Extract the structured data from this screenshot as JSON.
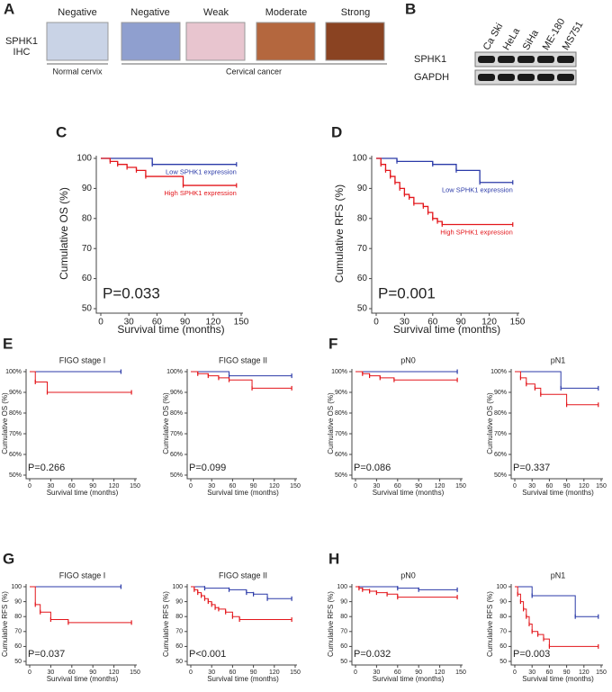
{
  "panel_a": {
    "label": "A",
    "row_label": [
      "SPHK1",
      "IHC"
    ],
    "columns": [
      "Negative",
      "Negative",
      "Weak",
      "Moderate",
      "Strong"
    ],
    "groups": [
      "Normal cervix",
      "Cervical cancer"
    ]
  },
  "panel_b": {
    "label": "B",
    "cell_lines": [
      "Ca Ski",
      "HeLa",
      "SiHa",
      "ME-180",
      "MS751"
    ],
    "proteins": [
      "SPHK1",
      "GAPDH"
    ]
  },
  "chart_data": [
    {
      "type": "line",
      "step": true,
      "panel": "C",
      "x_label": "Survival time (months)",
      "y_label": "Cumulative OS (%)",
      "annotation": "P=0.033",
      "xlim": [
        0,
        150
      ],
      "xticks": [
        0,
        30,
        60,
        90,
        120,
        150
      ],
      "ylim": [
        50,
        100
      ],
      "yticks": [
        50,
        60,
        70,
        80,
        90,
        100
      ],
      "series": [
        {
          "name": "Low SPHK1 expression",
          "color": "#2b3aa8",
          "x": [
            0,
            55,
            145
          ],
          "values": [
            100,
            98,
            98
          ]
        },
        {
          "name": "High SPHK1 expression",
          "color": "#e3161b",
          "x": [
            0,
            10,
            18,
            28,
            38,
            48,
            88,
            145
          ],
          "values": [
            100,
            99,
            98,
            97,
            96,
            94,
            91,
            91
          ]
        }
      ]
    },
    {
      "type": "line",
      "step": true,
      "panel": "D",
      "x_label": "Survival time (months)",
      "y_label": "Cumulative RFS (%)",
      "annotation": "P=0.001",
      "xlim": [
        0,
        150
      ],
      "xticks": [
        0,
        30,
        60,
        90,
        120,
        150
      ],
      "ylim": [
        50,
        100
      ],
      "yticks": [
        50,
        60,
        70,
        80,
        90,
        100
      ],
      "series": [
        {
          "name": "Low SPHK1 expression",
          "color": "#2b3aa8",
          "x": [
            0,
            22,
            60,
            85,
            110,
            145
          ],
          "values": [
            100,
            99,
            98,
            96,
            92,
            92
          ]
        },
        {
          "name": "High SPHK1 expression",
          "color": "#e3161b",
          "x": [
            0,
            5,
            10,
            15,
            20,
            25,
            30,
            35,
            40,
            50,
            55,
            60,
            65,
            70,
            145
          ],
          "values": [
            100,
            98,
            96,
            94,
            92,
            90,
            88,
            87,
            85,
            84,
            82,
            80,
            79,
            78,
            78
          ]
        }
      ]
    },
    {
      "type": "line",
      "step": true,
      "panel": "E",
      "title": "FIGO stage I",
      "x_label": "Survival time (months)",
      "y_label": "Cumulative OS (%)",
      "annotation": "P=0.266",
      "xlim": [
        0,
        150
      ],
      "xticks": [
        0,
        30,
        60,
        90,
        120,
        150
      ],
      "ylim": [
        50,
        100
      ],
      "yticks": [
        {
          "value": 50,
          "label": "50%"
        },
        {
          "value": 60,
          "label": "60%"
        },
        {
          "value": 70,
          "label": "70%"
        },
        {
          "value": 80,
          "label": "80%"
        },
        {
          "value": 90,
          "label": "90%"
        },
        {
          "value": 100,
          "label": "100%"
        }
      ],
      "series": [
        {
          "color": "#2b3aa8",
          "x": [
            0,
            130
          ],
          "values": [
            100,
            100
          ]
        },
        {
          "color": "#e3161b",
          "x": [
            0,
            8,
            25,
            145
          ],
          "values": [
            100,
            95,
            90,
            90
          ]
        }
      ]
    },
    {
      "type": "line",
      "step": true,
      "title": "FIGO stage II",
      "x_label": "Survival time (months)",
      "y_label": "Cumulative OS (%)",
      "annotation": "P=0.099",
      "xlim": [
        0,
        150
      ],
      "xticks": [
        0,
        30,
        60,
        90,
        120,
        150
      ],
      "ylim": [
        50,
        100
      ],
      "yticks": [
        {
          "value": 50,
          "label": "50%"
        },
        {
          "value": 60,
          "label": "60%"
        },
        {
          "value": 70,
          "label": "70%"
        },
        {
          "value": 80,
          "label": "80%"
        },
        {
          "value": 90,
          "label": "90%"
        },
        {
          "value": 100,
          "label": "100%"
        }
      ],
      "series": [
        {
          "color": "#2b3aa8",
          "x": [
            0,
            55,
            145
          ],
          "values": [
            100,
            98,
            98
          ]
        },
        {
          "color": "#e3161b",
          "x": [
            0,
            10,
            25,
            40,
            55,
            88,
            145
          ],
          "values": [
            100,
            99,
            98,
            97,
            96,
            92,
            92
          ]
        }
      ]
    },
    {
      "type": "line",
      "step": true,
      "panel": "F",
      "title": "pN0",
      "x_label": "Survival time (months)",
      "y_label": "Cumulative OS (%)",
      "annotation": "P=0.086",
      "xlim": [
        0,
        150
      ],
      "xticks": [
        0,
        30,
        60,
        90,
        120,
        150
      ],
      "ylim": [
        50,
        100
      ],
      "yticks": [
        {
          "value": 50,
          "label": "50%"
        },
        {
          "value": 60,
          "label": "60%"
        },
        {
          "value": 70,
          "label": "70%"
        },
        {
          "value": 80,
          "label": "80%"
        },
        {
          "value": 90,
          "label": "90%"
        },
        {
          "value": 100,
          "label": "100%"
        }
      ],
      "series": [
        {
          "color": "#2b3aa8",
          "x": [
            0,
            145
          ],
          "values": [
            100,
            100
          ]
        },
        {
          "color": "#e3161b",
          "x": [
            0,
            10,
            20,
            35,
            55,
            145
          ],
          "values": [
            100,
            99,
            98,
            97,
            96,
            96
          ]
        }
      ]
    },
    {
      "type": "line",
      "step": true,
      "title": "pN1",
      "x_label": "Survival time (months)",
      "y_label": "Cumulative OS (%)",
      "annotation": "P=0.337",
      "xlim": [
        0,
        150
      ],
      "xticks": [
        0,
        30,
        60,
        90,
        120,
        150
      ],
      "ylim": [
        50,
        100
      ],
      "yticks": [
        {
          "value": 50,
          "label": "50%"
        },
        {
          "value": 60,
          "label": "60%"
        },
        {
          "value": 70,
          "label": "70%"
        },
        {
          "value": 80,
          "label": "80%"
        },
        {
          "value": 90,
          "label": "90%"
        },
        {
          "value": 100,
          "label": "100%"
        }
      ],
      "series": [
        {
          "color": "#2b3aa8",
          "x": [
            0,
            80,
            145
          ],
          "values": [
            100,
            92,
            92
          ]
        },
        {
          "color": "#e3161b",
          "x": [
            0,
            10,
            20,
            35,
            45,
            90,
            145
          ],
          "values": [
            100,
            97,
            94,
            92,
            89,
            84,
            84
          ]
        }
      ]
    },
    {
      "type": "line",
      "step": true,
      "panel": "G",
      "title": "FIGO stage I",
      "x_label": "Survival time (months)",
      "y_label": "Cumulative RFS (%)",
      "annotation": "P=0.037",
      "xlim": [
        0,
        150
      ],
      "xticks": [
        0,
        30,
        60,
        90,
        120,
        150
      ],
      "ylim": [
        50,
        100
      ],
      "yticks": [
        50,
        60,
        70,
        80,
        90,
        100
      ],
      "series": [
        {
          "color": "#2b3aa8",
          "x": [
            0,
            130
          ],
          "values": [
            100,
            100
          ]
        },
        {
          "color": "#e3161b",
          "x": [
            0,
            8,
            15,
            30,
            55,
            145
          ],
          "values": [
            100,
            88,
            83,
            78,
            76,
            76
          ]
        }
      ]
    },
    {
      "type": "line",
      "step": true,
      "title": "FIGO stage II",
      "x_label": "Survival time (months)",
      "y_label": "Cumulative RFS (%)",
      "annotation": "P<0.001",
      "xlim": [
        0,
        150
      ],
      "xticks": [
        0,
        30,
        60,
        90,
        120,
        150
      ],
      "ylim": [
        50,
        100
      ],
      "yticks": [
        50,
        60,
        70,
        80,
        90,
        100
      ],
      "series": [
        {
          "color": "#2b3aa8",
          "x": [
            0,
            20,
            55,
            80,
            90,
            110,
            145
          ],
          "values": [
            100,
            99,
            98,
            96,
            95,
            92,
            92
          ]
        },
        {
          "color": "#e3161b",
          "x": [
            0,
            5,
            10,
            15,
            20,
            25,
            30,
            35,
            40,
            50,
            60,
            70,
            145
          ],
          "values": [
            100,
            98,
            96,
            94,
            92,
            90,
            88,
            86,
            85,
            83,
            80,
            78,
            78
          ]
        }
      ]
    },
    {
      "type": "line",
      "step": true,
      "panel": "H",
      "title": "pN0",
      "x_label": "Survival time (months)",
      "y_label": "Cumulative RFS (%)",
      "annotation": "P=0.032",
      "xlim": [
        0,
        150
      ],
      "xticks": [
        0,
        30,
        60,
        90,
        120,
        150
      ],
      "ylim": [
        50,
        100
      ],
      "yticks": [
        50,
        60,
        70,
        80,
        90,
        100
      ],
      "series": [
        {
          "color": "#2b3aa8",
          "x": [
            0,
            60,
            90,
            145
          ],
          "values": [
            100,
            99,
            98,
            98
          ]
        },
        {
          "color": "#e3161b",
          "x": [
            0,
            5,
            10,
            20,
            30,
            45,
            60,
            145
          ],
          "values": [
            100,
            99,
            98,
            97,
            96,
            95,
            93,
            93
          ]
        }
      ]
    },
    {
      "type": "line",
      "step": true,
      "title": "pN1",
      "x_label": "Survival time (months)",
      "y_label": "Cumulative RFS (%)",
      "annotation": "P=0.003",
      "xlim": [
        0,
        150
      ],
      "xticks": [
        0,
        30,
        60,
        90,
        120,
        150
      ],
      "ylim": [
        50,
        100
      ],
      "yticks": [
        50,
        60,
        70,
        80,
        90,
        100
      ],
      "series": [
        {
          "color": "#2b3aa8",
          "x": [
            0,
            30,
            105,
            145
          ],
          "values": [
            100,
            94,
            80,
            80
          ]
        },
        {
          "color": "#e3161b",
          "x": [
            0,
            5,
            10,
            15,
            20,
            25,
            30,
            40,
            50,
            60,
            145
          ],
          "values": [
            100,
            95,
            90,
            85,
            80,
            75,
            70,
            68,
            65,
            60,
            60
          ]
        }
      ]
    }
  ]
}
